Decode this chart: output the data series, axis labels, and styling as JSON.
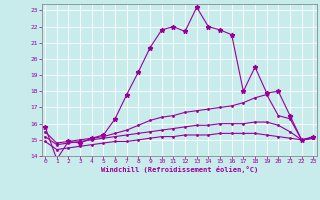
{
  "xlabel": "Windchill (Refroidissement éolien,°C)",
  "x_values": [
    0,
    1,
    2,
    3,
    4,
    5,
    6,
    7,
    8,
    9,
    10,
    11,
    12,
    13,
    14,
    15,
    16,
    17,
    18,
    19,
    20,
    21,
    22,
    23
  ],
  "line1_y": [
    15.8,
    13.8,
    14.9,
    14.8,
    15.1,
    15.3,
    16.3,
    17.8,
    19.2,
    20.7,
    21.8,
    22.0,
    21.7,
    23.2,
    22.0,
    21.8,
    21.5,
    18.0,
    19.5,
    17.9,
    18.0,
    16.5,
    15.0,
    15.2
  ],
  "line2_y": [
    15.5,
    14.8,
    14.9,
    15.0,
    15.1,
    15.2,
    15.4,
    15.6,
    15.9,
    16.2,
    16.4,
    16.5,
    16.7,
    16.8,
    16.9,
    17.0,
    17.1,
    17.3,
    17.6,
    17.8,
    16.5,
    16.3,
    15.0,
    15.1
  ],
  "line3_y": [
    15.2,
    14.7,
    14.8,
    14.9,
    15.0,
    15.1,
    15.2,
    15.3,
    15.4,
    15.5,
    15.6,
    15.7,
    15.8,
    15.9,
    15.9,
    16.0,
    16.0,
    16.0,
    16.1,
    16.1,
    15.9,
    15.5,
    15.0,
    15.1
  ],
  "line4_y": [
    14.9,
    14.4,
    14.5,
    14.6,
    14.7,
    14.8,
    14.9,
    14.9,
    15.0,
    15.1,
    15.2,
    15.2,
    15.3,
    15.3,
    15.3,
    15.4,
    15.4,
    15.4,
    15.4,
    15.3,
    15.2,
    15.1,
    15.0,
    15.1
  ],
  "line_color": "#990099",
  "background_color": "#c8ecec",
  "grid_color": "#b0d8d8",
  "ylim": [
    14,
    23.4
  ],
  "xlim": [
    -0.3,
    23.3
  ],
  "yticks": [
    14,
    15,
    16,
    17,
    18,
    19,
    20,
    21,
    22,
    23
  ],
  "xticks": [
    0,
    1,
    2,
    3,
    4,
    5,
    6,
    7,
    8,
    9,
    10,
    11,
    12,
    13,
    14,
    15,
    16,
    17,
    18,
    19,
    20,
    21,
    22,
    23
  ]
}
